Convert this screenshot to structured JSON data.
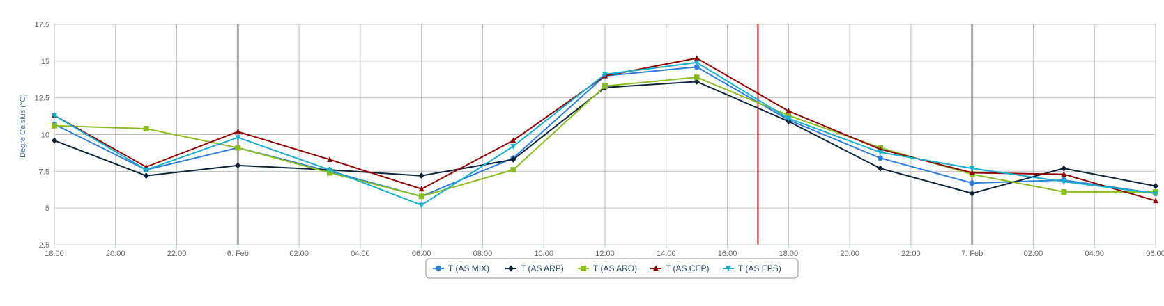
{
  "chart_data": {
    "type": "line",
    "title": "",
    "xlabel": "",
    "ylabel": "Degré Celsius (°C)",
    "ylim": [
      2.5,
      17.5
    ],
    "xlim": [
      "2015-02-05 18:00",
      "2015-02-07 06:00"
    ],
    "y_ticks": [
      "2.5",
      "5",
      "7.5",
      "10",
      "12.5",
      "15",
      "17.5"
    ],
    "x_ticks": [
      {
        "x": "2015-02-05 18:00",
        "label": "18:00"
      },
      {
        "x": "2015-02-05 20:00",
        "label": "20:00"
      },
      {
        "x": "2015-02-05 22:00",
        "label": "22:00"
      },
      {
        "x": "2015-02-06 00:00",
        "label": "6. Feb"
      },
      {
        "x": "2015-02-06 02:00",
        "label": "02:00"
      },
      {
        "x": "2015-02-06 04:00",
        "label": "04:00"
      },
      {
        "x": "2015-02-06 06:00",
        "label": "06:00"
      },
      {
        "x": "2015-02-06 08:00",
        "label": "08:00"
      },
      {
        "x": "2015-02-06 10:00",
        "label": "10:00"
      },
      {
        "x": "2015-02-06 12:00",
        "label": "12:00"
      },
      {
        "x": "2015-02-06 14:00",
        "label": "14:00"
      },
      {
        "x": "2015-02-06 16:00",
        "label": "16:00"
      },
      {
        "x": "2015-02-06 18:00",
        "label": "18:00"
      },
      {
        "x": "2015-02-06 20:00",
        "label": "20:00"
      },
      {
        "x": "2015-02-06 22:00",
        "label": "22:00"
      },
      {
        "x": "2015-02-07 00:00",
        "label": "7. Feb"
      },
      {
        "x": "2015-02-07 02:00",
        "label": "02:00"
      },
      {
        "x": "2015-02-07 04:00",
        "label": "04:00"
      },
      {
        "x": "2015-02-07 06:00",
        "label": "06:00"
      }
    ],
    "day_boundaries": [
      "2015-02-06 00:00",
      "2015-02-07 00:00"
    ],
    "current_time_marker": "2015-02-06 17:00",
    "x": [
      "2015-02-05 18:00",
      "2015-02-05 21:00",
      "2015-02-06 00:00",
      "2015-02-06 03:00",
      "2015-02-06 06:00",
      "2015-02-06 09:00",
      "2015-02-06 12:00",
      "2015-02-06 15:00",
      "2015-02-06 18:00",
      "2015-02-06 21:00",
      "2015-02-07 00:00",
      "2015-02-07 03:00",
      "2015-02-07 06:00"
    ],
    "grid": true,
    "legend_position": "bottom-center",
    "series": [
      {
        "name": "T (AS MIX)",
        "color": "#2f7ed8",
        "marker": "circle",
        "values": [
          10.7,
          7.6,
          9.1,
          7.5,
          5.8,
          8.4,
          14.0,
          14.6,
          11.0,
          8.4,
          6.7,
          6.9,
          6.0
        ]
      },
      {
        "name": "T (AS ARP)",
        "color": "#0d233a",
        "marker": "diamond",
        "values": [
          9.6,
          7.2,
          7.9,
          7.6,
          7.2,
          8.3,
          13.2,
          13.6,
          10.9,
          7.7,
          6.0,
          7.7,
          6.5
        ]
      },
      {
        "name": "T (AS ARO)",
        "color": "#8bbc21",
        "marker": "square",
        "values": [
          10.6,
          10.4,
          9.1,
          7.4,
          5.8,
          7.6,
          13.3,
          13.9,
          11.3,
          9.1,
          7.3,
          6.1,
          6.1
        ]
      },
      {
        "name": "T (AS CEP)",
        "color": "#910000",
        "marker": "triangle",
        "values": [
          11.3,
          7.8,
          10.2,
          8.3,
          6.3,
          9.6,
          14.0,
          15.2,
          11.6,
          9.0,
          7.4,
          7.3,
          5.5
        ]
      },
      {
        "name": "T (AS EPS)",
        "color": "#1aadce",
        "marker": "triangle-down",
        "values": [
          11.3,
          7.6,
          9.8,
          7.6,
          5.2,
          9.2,
          14.1,
          14.9,
          11.1,
          8.8,
          7.7,
          6.8,
          6.0
        ]
      }
    ]
  }
}
